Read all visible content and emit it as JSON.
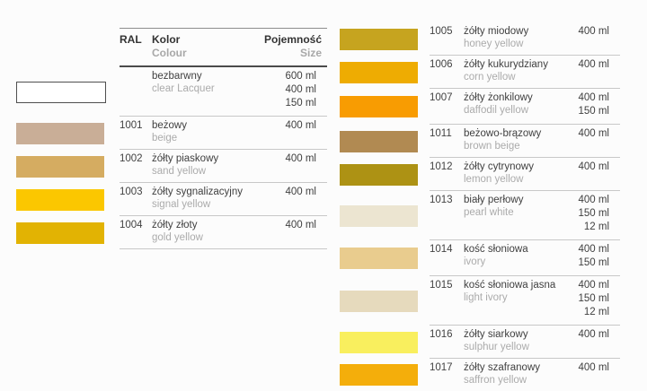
{
  "header": {
    "ral": "RAL",
    "color_pl": "Kolor",
    "color_en": "Colour",
    "size_pl": "Pojemność",
    "size_en": "Size"
  },
  "left_rows": [
    {
      "ral": "",
      "name_pl": "bezbarwny",
      "name_en": "clear Lacquer",
      "sizes": [
        "600 ml",
        "400 ml",
        "150 ml"
      ],
      "color": "#ffffff"
    },
    {
      "ral": "1001",
      "name_pl": "beżowy",
      "name_en": "beige",
      "sizes": [
        "400 ml"
      ],
      "color": "#c9ae97"
    },
    {
      "ral": "1002",
      "name_pl": "żółty piaskowy",
      "name_en": "sand yellow",
      "sizes": [
        "400 ml"
      ],
      "color": "#d5ac61"
    },
    {
      "ral": "1003",
      "name_pl": "żółty sygnalizacyjny",
      "name_en": "signal yellow",
      "sizes": [
        "400 ml"
      ],
      "color": "#fbc700"
    },
    {
      "ral": "1004",
      "name_pl": "żółty złoty",
      "name_en": "gold yellow",
      "sizes": [
        "400 ml"
      ],
      "color": "#e2b303"
    }
  ],
  "right_rows": [
    {
      "ral": "1005",
      "name_pl": "żółty miodowy",
      "name_en": "honey yellow",
      "sizes": [
        "400 ml"
      ],
      "color": "#c6a41f"
    },
    {
      "ral": "1006",
      "name_pl": "żółty kukurydziany",
      "name_en": "corn yellow",
      "sizes": [
        "400 ml"
      ],
      "color": "#eeac02"
    },
    {
      "ral": "1007",
      "name_pl": "żółty żonkilowy",
      "name_en": "daffodil yellow",
      "sizes": [
        "400 ml",
        "150 ml"
      ],
      "color": "#f89c02"
    },
    {
      "ral": "1011",
      "name_pl": "beżowo-brązowy",
      "name_en": "brown beige",
      "sizes": [
        "400 ml"
      ],
      "color": "#b18a52"
    },
    {
      "ral": "1012",
      "name_pl": "żółty cytrynowy",
      "name_en": "lemon yellow",
      "sizes": [
        "400 ml"
      ],
      "color": "#ad9214"
    },
    {
      "ral": "1013",
      "name_pl": "biały perłowy",
      "name_en": "pearl white",
      "sizes": [
        "400 ml",
        "150 ml",
        "12 ml"
      ],
      "color": "#ece5d1"
    },
    {
      "ral": "1014",
      "name_pl": "kość słoniowa",
      "name_en": "ivory",
      "sizes": [
        "400 ml",
        "150 ml"
      ],
      "color": "#e9cc8e"
    },
    {
      "ral": "1015",
      "name_pl": "kość słoniowa jasna",
      "name_en": "light ivory",
      "sizes": [
        "400 ml",
        "150 ml",
        "12 ml"
      ],
      "color": "#e6dabd"
    },
    {
      "ral": "1016",
      "name_pl": "żółty siarkowy",
      "name_en": "sulphur yellow",
      "sizes": [
        "400 ml"
      ],
      "color": "#f9ef5e"
    },
    {
      "ral": "1017",
      "name_pl": "żółty szafranowy",
      "name_en": "saffron yellow",
      "sizes": [
        "400 ml"
      ],
      "color": "#f4ae0b"
    }
  ]
}
